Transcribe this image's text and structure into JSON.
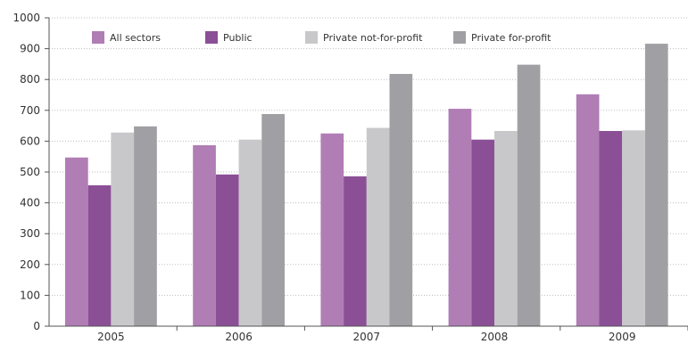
{
  "chart_data": {
    "type": "bar",
    "title": "",
    "xlabel": "",
    "ylabel": "",
    "categories": [
      "2005",
      "2006",
      "2007",
      "2008",
      "2009"
    ],
    "ylim": [
      0,
      1000
    ],
    "yticks": [
      0,
      100,
      200,
      300,
      400,
      500,
      600,
      700,
      800,
      900,
      1000
    ],
    "grid": "horizontal dotted",
    "legend": "top, single row",
    "series": [
      {
        "name": "All sectors",
        "color": "#b07db5",
        "values": [
          547,
          587,
          625,
          705,
          752
        ]
      },
      {
        "name": "Public",
        "color": "#8b4f96",
        "values": [
          457,
          492,
          486,
          605,
          633
        ]
      },
      {
        "name": "Private not-for-profit",
        "color": "#c8c8ca",
        "values": [
          628,
          605,
          643,
          633,
          635
        ]
      },
      {
        "name": "Private for-profit",
        "color": "#a0a0a4",
        "values": [
          648,
          688,
          818,
          848,
          916
        ]
      }
    ]
  }
}
